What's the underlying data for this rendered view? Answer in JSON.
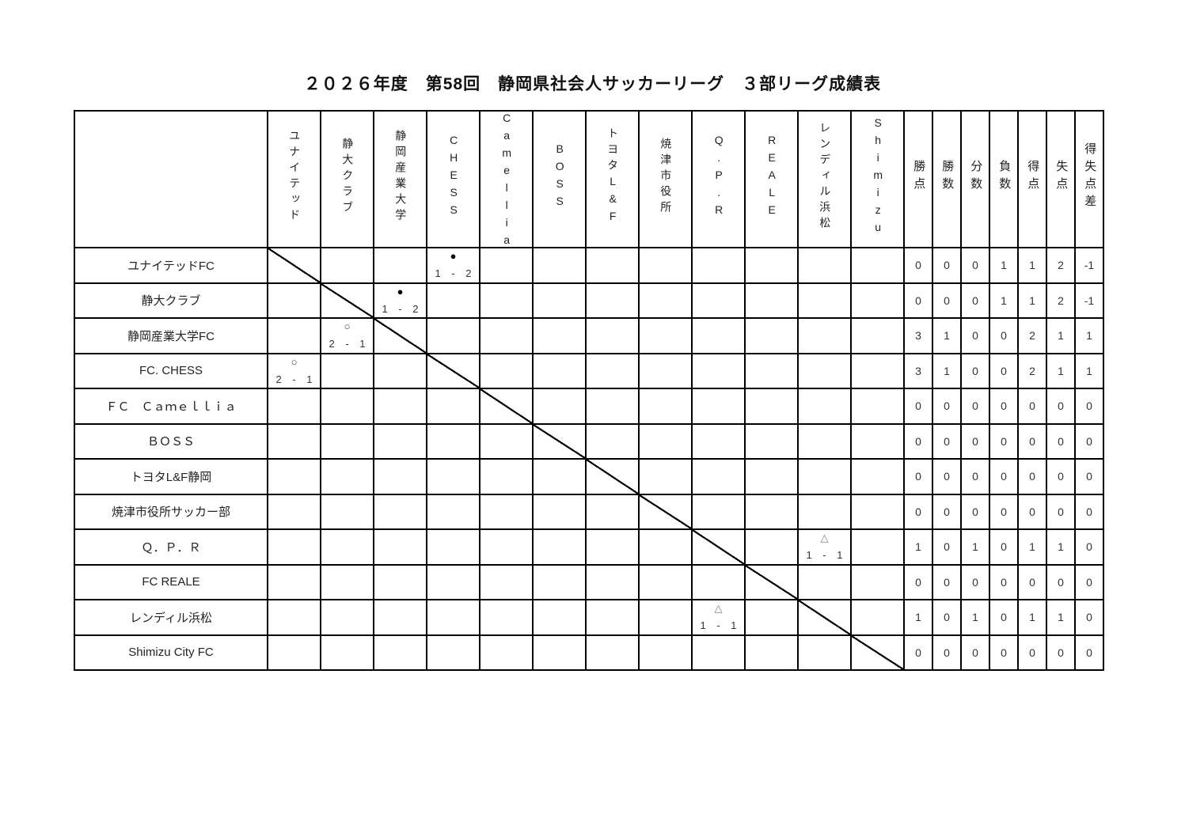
{
  "title": "２０２６年度　第58回　静岡県社会人サッカーリーグ　３部リーグ成績表",
  "colors": {
    "win_mark": "#3a3a3a",
    "loss_mark": "#000000",
    "draw_mark": "#808080",
    "border": "#000000",
    "text": "#222222"
  },
  "opponent_headers": [
    "ユナイテッド",
    "静大クラブ",
    "静岡産業大学",
    "CHESS",
    "Camellia",
    "BOSS",
    "トヨタL&F",
    "焼津市役所",
    "Q.P.R",
    "REALE",
    "レンディル浜松",
    "Shimizu"
  ],
  "stat_headers": [
    "勝点",
    "勝数",
    "分数",
    "負数",
    "得点",
    "失点",
    "得失点差"
  ],
  "teams": [
    {
      "name": "ユナイテッドFC",
      "results": [
        "diag",
        null,
        null,
        {
          "mark": "●",
          "score": "1 - 2"
        },
        null,
        null,
        null,
        null,
        null,
        null,
        null,
        null
      ],
      "stats": [
        "0",
        "0",
        "0",
        "1",
        "1",
        "2",
        "-1"
      ]
    },
    {
      "name": "静大クラブ",
      "results": [
        null,
        "diag",
        {
          "mark": "●",
          "score": "1 - 2"
        },
        null,
        null,
        null,
        null,
        null,
        null,
        null,
        null,
        null
      ],
      "stats": [
        "0",
        "0",
        "0",
        "1",
        "1",
        "2",
        "-1"
      ]
    },
    {
      "name": "静岡産業大学FC",
      "results": [
        null,
        {
          "mark": "○",
          "score": "2 - 1"
        },
        "diag",
        null,
        null,
        null,
        null,
        null,
        null,
        null,
        null,
        null
      ],
      "stats": [
        "3",
        "1",
        "0",
        "0",
        "2",
        "1",
        "1"
      ]
    },
    {
      "name": "FC. CHESS",
      "results": [
        {
          "mark": "○",
          "score": "2 - 1"
        },
        null,
        null,
        "diag",
        null,
        null,
        null,
        null,
        null,
        null,
        null,
        null
      ],
      "stats": [
        "3",
        "1",
        "0",
        "0",
        "2",
        "1",
        "1"
      ]
    },
    {
      "name": "ＦＣ　Ｃａｍｅｌｌｉａ",
      "results": [
        null,
        null,
        null,
        null,
        "diag",
        null,
        null,
        null,
        null,
        null,
        null,
        null
      ],
      "stats": [
        "0",
        "0",
        "0",
        "0",
        "0",
        "0",
        "0"
      ]
    },
    {
      "name": "ＢＯＳＳ",
      "results": [
        null,
        null,
        null,
        null,
        null,
        "diag",
        null,
        null,
        null,
        null,
        null,
        null
      ],
      "stats": [
        "0",
        "0",
        "0",
        "0",
        "0",
        "0",
        "0"
      ]
    },
    {
      "name": "トヨタL&F静岡",
      "results": [
        null,
        null,
        null,
        null,
        null,
        null,
        "diag",
        null,
        null,
        null,
        null,
        null
      ],
      "stats": [
        "0",
        "0",
        "0",
        "0",
        "0",
        "0",
        "0"
      ]
    },
    {
      "name": "焼津市役所サッカー部",
      "results": [
        null,
        null,
        null,
        null,
        null,
        null,
        null,
        "diag",
        null,
        null,
        null,
        null
      ],
      "stats": [
        "0",
        "0",
        "0",
        "0",
        "0",
        "0",
        "0"
      ]
    },
    {
      "name": "Ｑ．Ｐ．Ｒ",
      "results": [
        null,
        null,
        null,
        null,
        null,
        null,
        null,
        null,
        "diag",
        null,
        {
          "mark": "△",
          "score": "1 - 1"
        },
        null
      ],
      "stats": [
        "1",
        "0",
        "1",
        "0",
        "1",
        "1",
        "0"
      ]
    },
    {
      "name": "FC REALE",
      "results": [
        null,
        null,
        null,
        null,
        null,
        null,
        null,
        null,
        null,
        "diag",
        null,
        null
      ],
      "stats": [
        "0",
        "0",
        "0",
        "0",
        "0",
        "0",
        "0"
      ]
    },
    {
      "name": "レンディル浜松",
      "results": [
        null,
        null,
        null,
        null,
        null,
        null,
        null,
        null,
        {
          "mark": "△",
          "score": "1 - 1"
        },
        null,
        "diag",
        null
      ],
      "stats": [
        "1",
        "0",
        "1",
        "0",
        "1",
        "1",
        "0"
      ]
    },
    {
      "name": "Shimizu City FC",
      "results": [
        null,
        null,
        null,
        null,
        null,
        null,
        null,
        null,
        null,
        null,
        null,
        "diag"
      ],
      "stats": [
        "0",
        "0",
        "0",
        "0",
        "0",
        "0",
        "0"
      ]
    }
  ]
}
